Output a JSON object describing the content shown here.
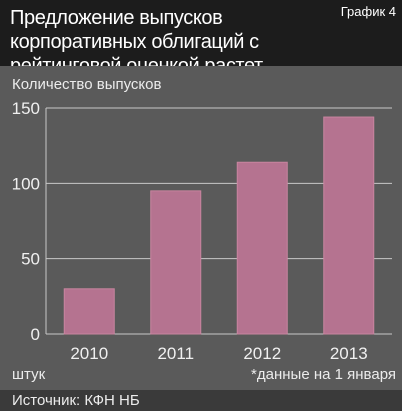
{
  "header": {
    "title": "Предложение выпусков корпоративных облигаций с рейтинговой оценкой растет",
    "badge": "График 4"
  },
  "footer": {
    "units": "штук",
    "note": "*данные на 1 января",
    "source": "Источник: КФН НБ"
  },
  "chart_data": {
    "type": "bar",
    "title": "Предложение выпусков корпоративных облигаций с рейтинговой оценкой растет",
    "ylabel": "Количество выпусков",
    "xlabel": "",
    "categories": [
      "2010",
      "2011",
      "2012",
      "2013"
    ],
    "values": [
      30,
      95,
      114,
      144
    ],
    "ylim": [
      0,
      150
    ],
    "yticks": [
      "0",
      "50",
      "100",
      "150"
    ],
    "grid": true,
    "legend": "none",
    "colors": {
      "bar": "#b57390",
      "bar_edge": "#c8859f",
      "grid": "#c8c8c8",
      "plot_bg": "#5a5a5a",
      "page_bg": "#4a4a4a"
    }
  }
}
